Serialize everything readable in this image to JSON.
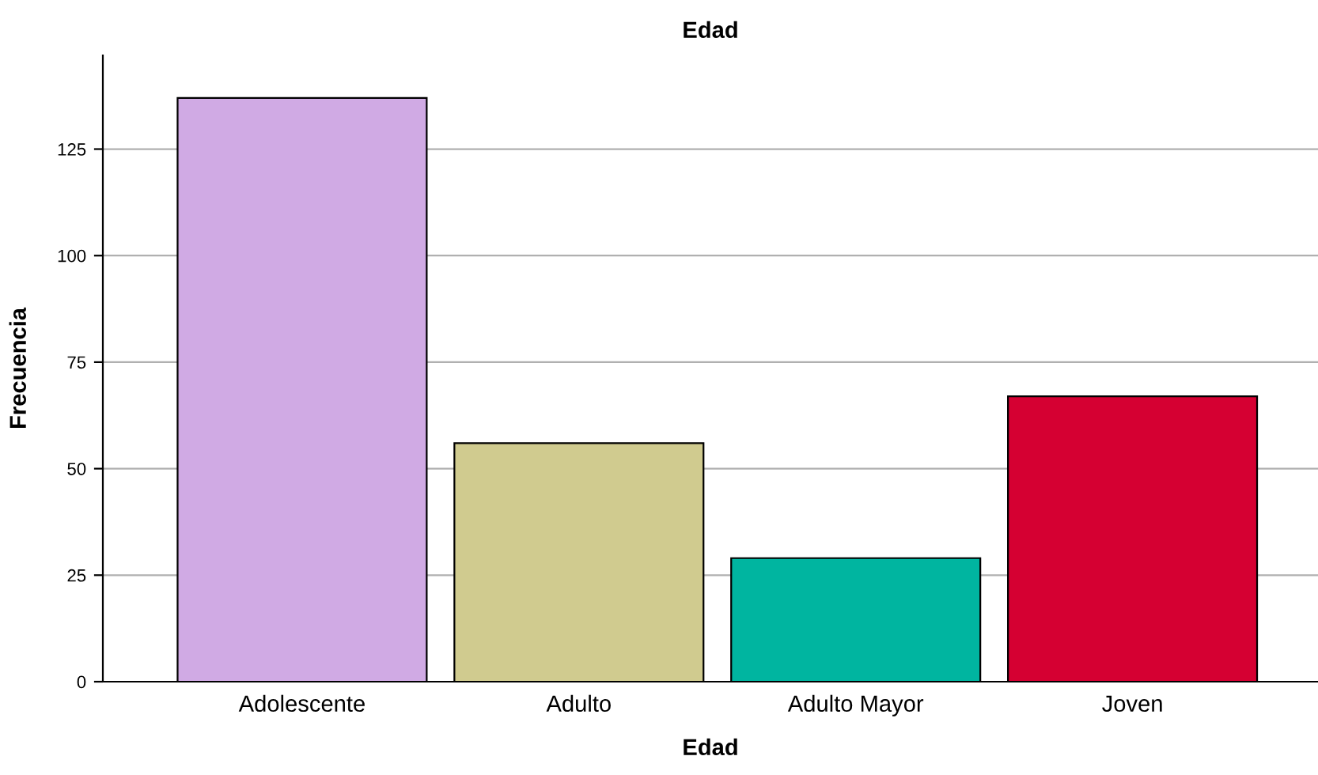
{
  "chart_data": {
    "type": "bar",
    "title": "Edad",
    "xlabel": "Edad",
    "ylabel": "Frecuencia",
    "categories": [
      "Adolescente",
      "Adulto",
      "Adulto Mayor",
      "Joven"
    ],
    "values": [
      137,
      56,
      29,
      67
    ],
    "colors": [
      "#d0aae4",
      "#d0cb8f",
      "#00b5a0",
      "#d50032"
    ],
    "ylim": [
      0,
      147
    ],
    "yticks": [
      0,
      25,
      50,
      75,
      100,
      125
    ],
    "grid": "y",
    "legend": false
  }
}
